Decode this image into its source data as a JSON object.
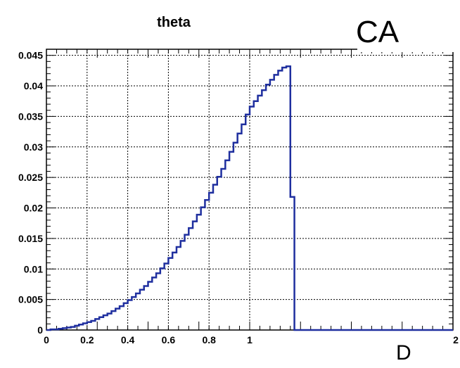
{
  "chart_data": {
    "type": "line",
    "title": "theta",
    "xlabel": "",
    "ylabel": "",
    "xlim": [
      0,
      2
    ],
    "ylim": [
      0,
      0.046
    ],
    "x_ticks": [
      0,
      0.2,
      0.4,
      0.6,
      0.8,
      1,
      2
    ],
    "x_tick_labels": [
      "0",
      "0.2",
      "0.4",
      "0.6",
      "0.8",
      "1",
      "2"
    ],
    "y_ticks": [
      0,
      0.005,
      0.01,
      0.015,
      0.02,
      0.025,
      0.03,
      0.035,
      0.04,
      0.045
    ],
    "y_tick_labels": [
      "0",
      "0.005",
      "0.01",
      "0.015",
      "0.02",
      "0.025",
      "0.03",
      "0.035",
      "0.04",
      "0.045"
    ],
    "grid": true,
    "legend": "none",
    "line_color": "#1f2f9f",
    "series": [
      {
        "bin_width": 0.02,
        "x_start": 0,
        "values": [
          0.0,
          0.0001,
          0.0001,
          0.0002,
          0.0003,
          0.0004,
          0.0005,
          0.0007,
          0.0009,
          0.0011,
          0.0013,
          0.0015,
          0.0018,
          0.0021,
          0.0024,
          0.0027,
          0.0031,
          0.0035,
          0.0039,
          0.0044,
          0.0049,
          0.0054,
          0.006,
          0.0066,
          0.0072,
          0.0079,
          0.0086,
          0.0093,
          0.0101,
          0.0109,
          0.0118,
          0.0127,
          0.0136,
          0.0146,
          0.0156,
          0.0167,
          0.0178,
          0.0189,
          0.0201,
          0.0213,
          0.0225,
          0.0238,
          0.0251,
          0.0264,
          0.0278,
          0.0292,
          0.0307,
          0.0322,
          0.0337,
          0.0353,
          0.0366,
          0.0375,
          0.0384,
          0.0393,
          0.0402,
          0.041,
          0.0418,
          0.0425,
          0.043,
          0.0432,
          0.0218,
          0.0,
          0.0,
          0.0,
          0.0,
          0.0,
          0.0,
          0.0,
          0.0,
          0.0,
          0.0,
          0.0,
          0.0,
          0.0,
          0.0,
          0.0,
          0.0,
          0.0,
          0.0,
          0.0,
          0.0,
          0.0,
          0.0,
          0.0,
          0.0,
          0.0,
          0.0,
          0.0,
          0.0,
          0.0,
          0.0,
          0.0,
          0.0,
          0.0,
          0.0,
          0.0,
          0.0,
          0.0,
          0.0,
          0.0
        ]
      }
    ]
  },
  "overlays": {
    "top_right": "CA",
    "bottom_right": "D"
  }
}
